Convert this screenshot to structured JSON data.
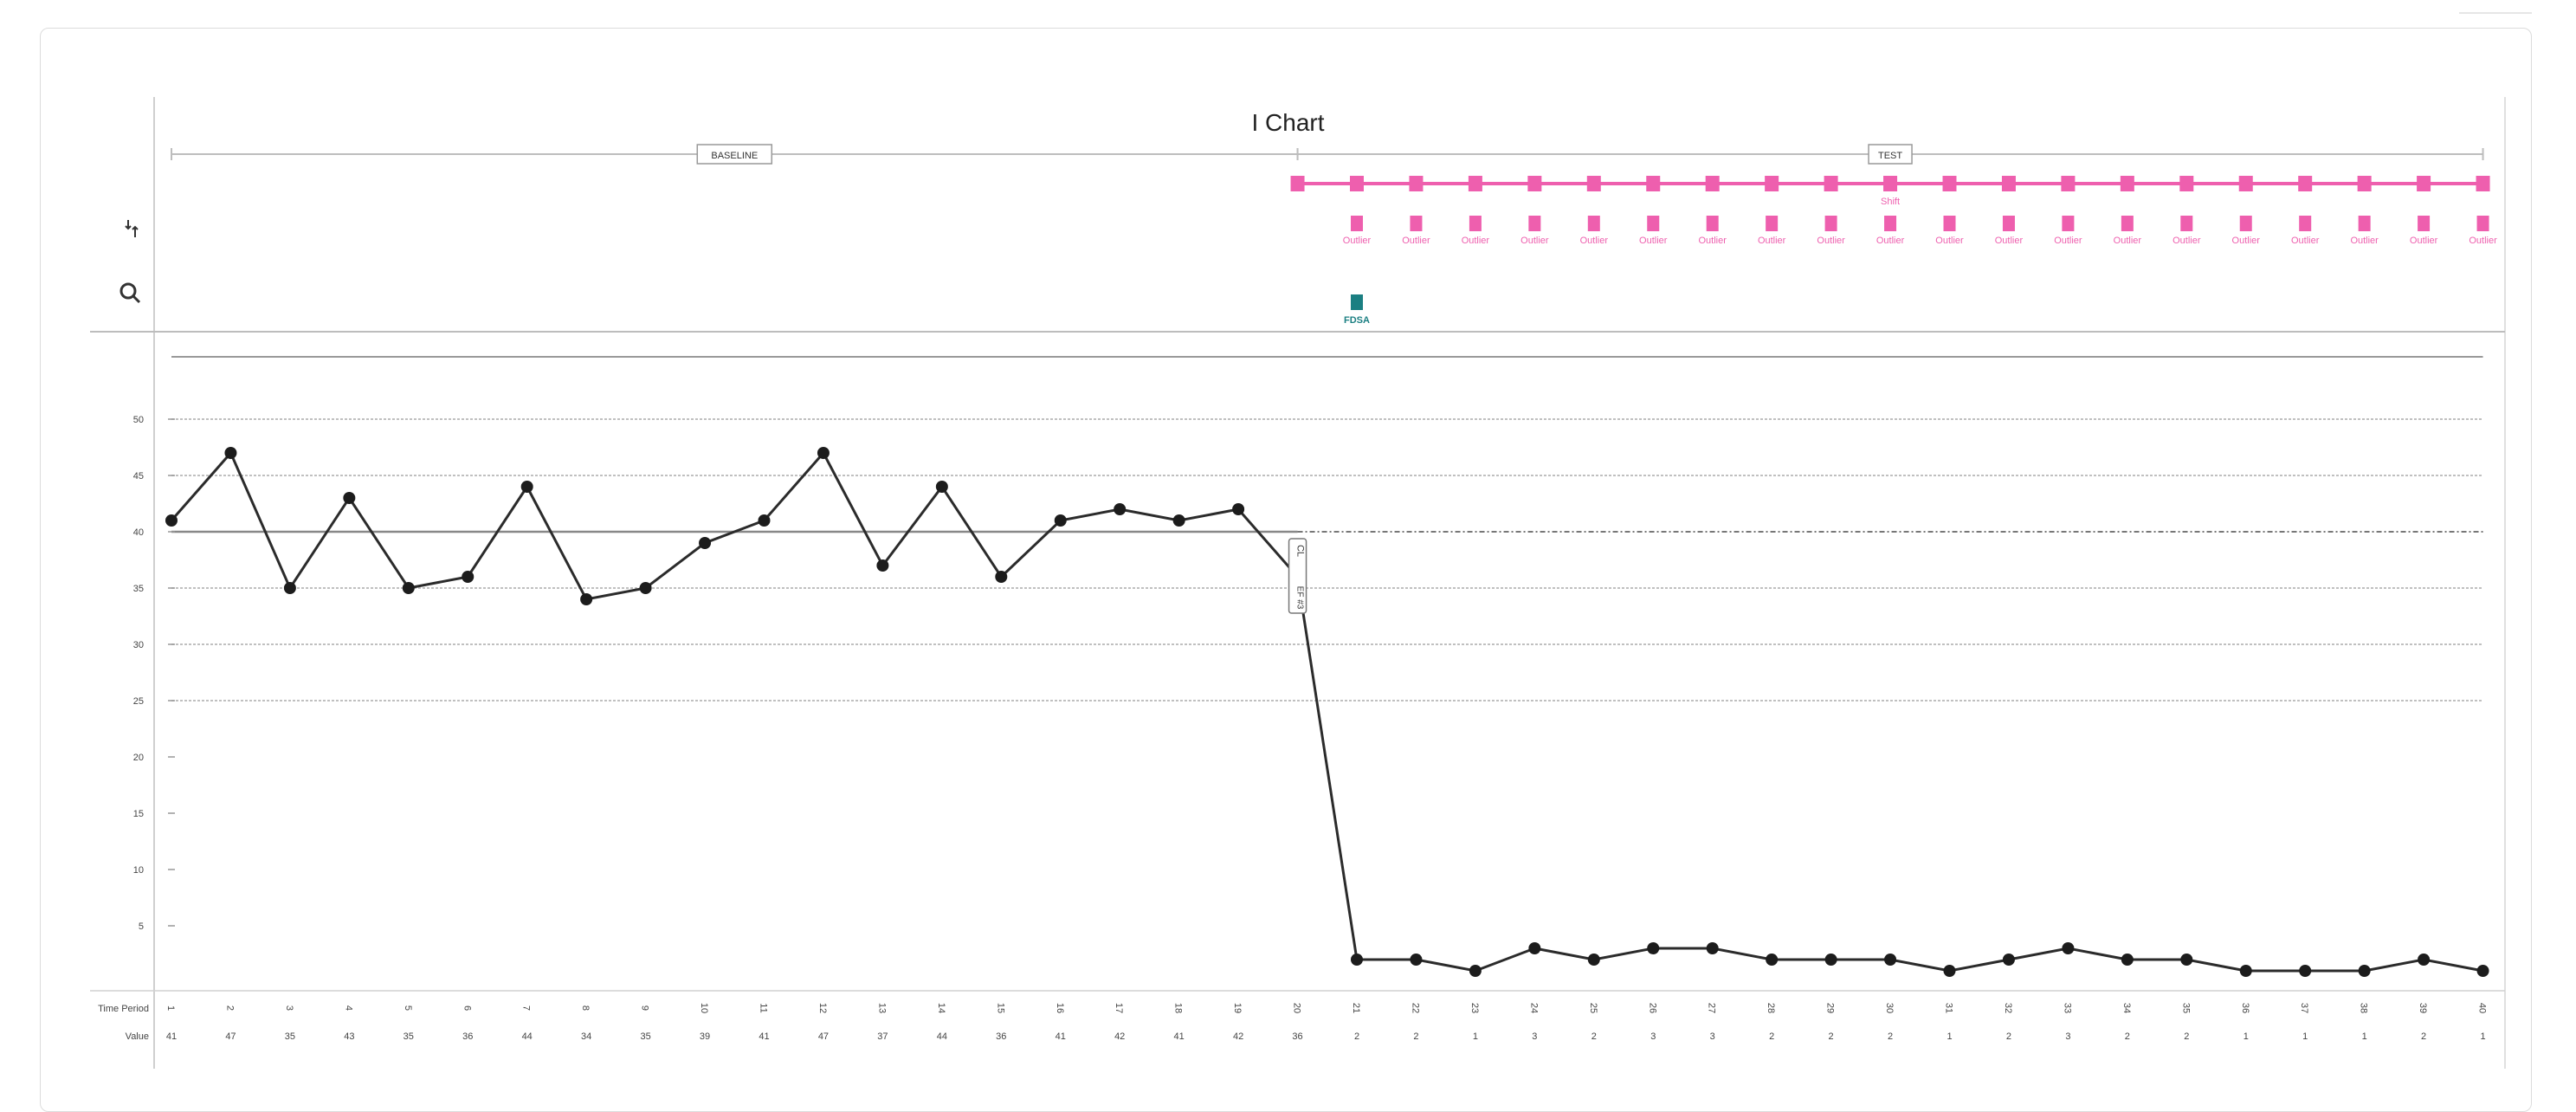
{
  "page": {
    "title": "I Chart"
  },
  "icons": {
    "rules_icon": "sort-rules-icon",
    "search_icon": "magnifier-icon"
  },
  "colors": {
    "line": "#2b2b2b",
    "annotation": "#ee5fae",
    "fdsa": "#1b7f82",
    "grid": "#bdbdbd"
  },
  "phases": [
    {
      "label": "BASELINE",
      "start": 1,
      "end": 20
    },
    {
      "label": "TEST",
      "start": 20,
      "end": 40
    }
  ],
  "annotations": {
    "shift_label": "Shift",
    "outlier_label": "Outlier",
    "outlier_periods": [
      21,
      22,
      23,
      24,
      25,
      26,
      27,
      28,
      29,
      30,
      31,
      32,
      33,
      34,
      35,
      36,
      37,
      38,
      39,
      40
    ],
    "shift_start": 20,
    "shift_end": 40,
    "shift_text_period": 30,
    "fdsa_label": "FDSA",
    "fdsa_period": 21,
    "cl_label": "CL",
    "ef_label": "EF #3"
  },
  "table": {
    "row1_label": "Time Period",
    "row2_label": "Value"
  },
  "chart_data": {
    "type": "line",
    "title": "I Chart",
    "x": [
      1,
      2,
      3,
      4,
      5,
      6,
      7,
      8,
      9,
      10,
      11,
      12,
      13,
      14,
      15,
      16,
      17,
      18,
      19,
      20,
      21,
      22,
      23,
      24,
      25,
      26,
      27,
      28,
      29,
      30,
      31,
      32,
      33,
      34,
      35,
      36,
      37,
      38,
      39,
      40
    ],
    "series": [
      {
        "values": [
          41,
          47,
          35,
          43,
          35,
          36,
          44,
          34,
          35,
          39,
          41,
          47,
          37,
          44,
          36,
          41,
          42,
          41,
          42,
          36,
          2,
          2,
          1,
          3,
          2,
          3,
          3,
          2,
          2,
          2,
          1,
          2,
          3,
          2,
          2,
          1,
          1,
          1,
          2,
          1
        ]
      }
    ],
    "y_ticks": [
      5,
      10,
      15,
      20,
      25,
      30,
      35,
      40,
      45,
      50
    ],
    "ylim": [
      0,
      55
    ],
    "center_line": 40,
    "limit_lines": [
      25,
      30,
      35,
      45,
      50
    ],
    "grid": false
  }
}
